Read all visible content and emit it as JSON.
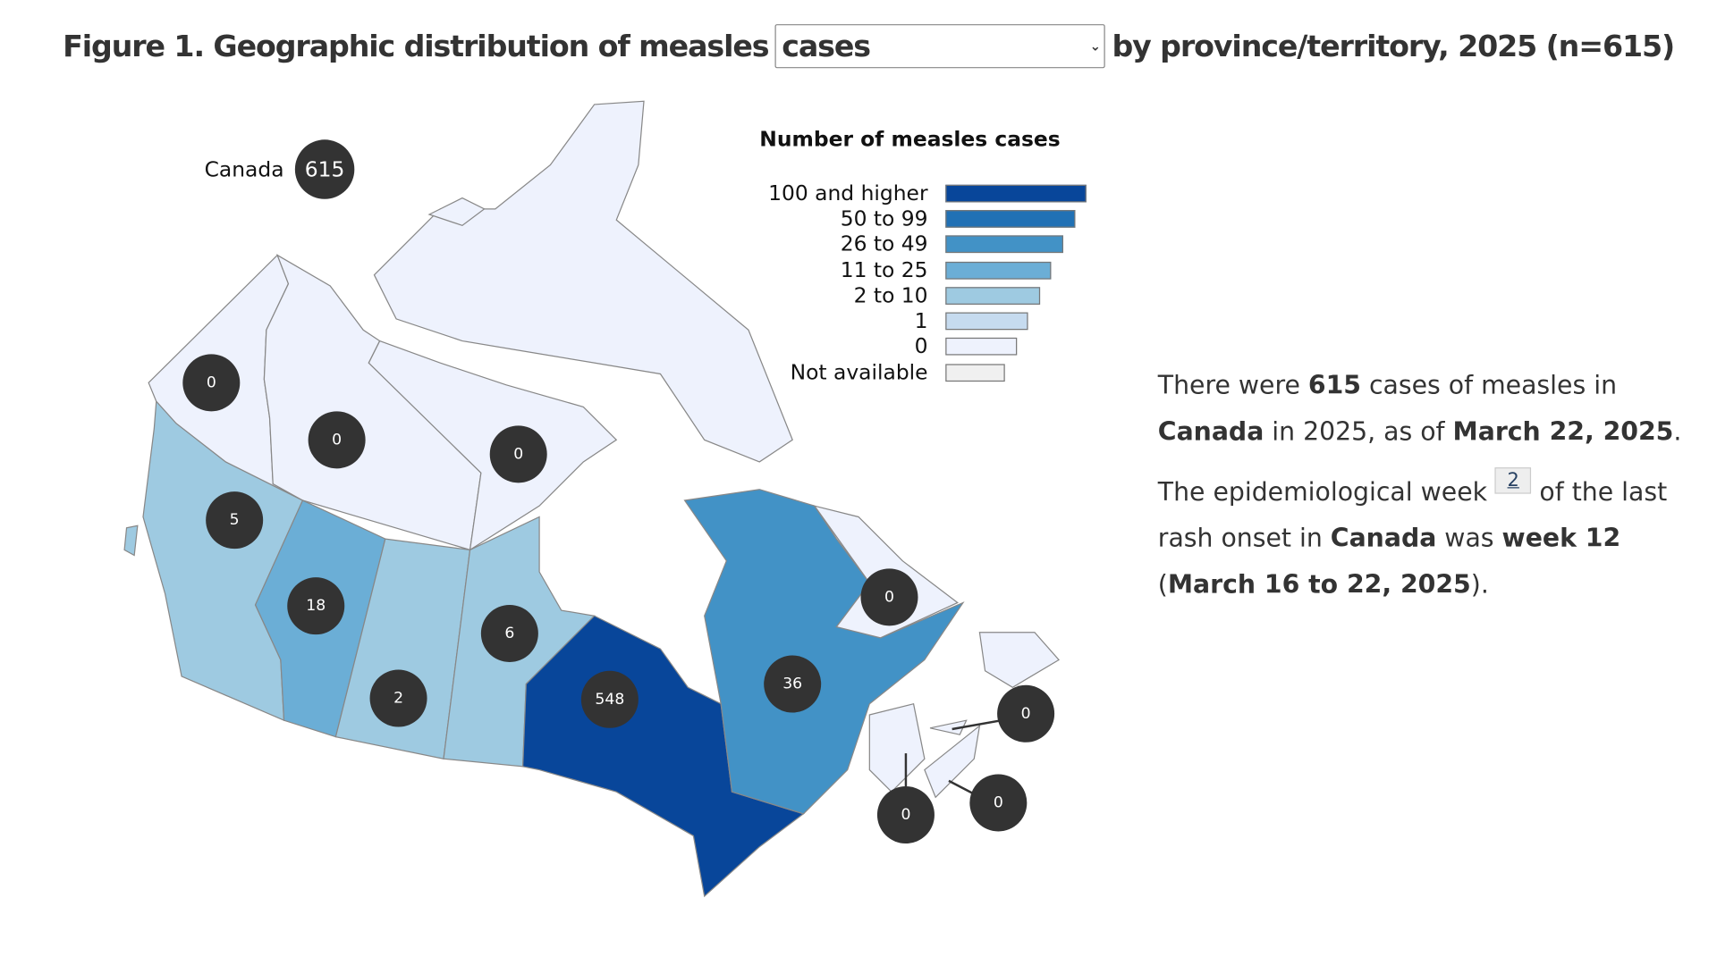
{
  "title": {
    "prefix": "Figure 1. Geographic distribution of measles",
    "select_value": "cases",
    "suffix": "by province/territory, 2025 (n=615)"
  },
  "canada": {
    "label": "Canada",
    "value": "615"
  },
  "legend": {
    "title": "Number of measles cases",
    "items": [
      {
        "label": "100 and higher",
        "color": "#08469a"
      },
      {
        "label": "50 to 99",
        "color": "#2171b5"
      },
      {
        "label": "26 to 49",
        "color": "#4292c6"
      },
      {
        "label": "11 to 25",
        "color": "#6baed6"
      },
      {
        "label": "2 to 10",
        "color": "#9ecae1"
      },
      {
        "label": "1",
        "color": "#c6dbef"
      },
      {
        "label": "0",
        "color": "#eef2fd"
      },
      {
        "label": "Not available",
        "color": "#f0f0f0"
      }
    ]
  },
  "regions": [
    {
      "id": "YT",
      "value": 0
    },
    {
      "id": "NT",
      "value": 0
    },
    {
      "id": "NU",
      "value": 0
    },
    {
      "id": "BC",
      "value": 5
    },
    {
      "id": "AB",
      "value": 18
    },
    {
      "id": "SK",
      "value": 2
    },
    {
      "id": "MB",
      "value": 6
    },
    {
      "id": "ON",
      "value": 548
    },
    {
      "id": "QC",
      "value": 36
    },
    {
      "id": "NL",
      "value": 0
    },
    {
      "id": "PE",
      "value": 0
    },
    {
      "id": "NB",
      "value": 0
    },
    {
      "id": "NS",
      "value": 0
    }
  ],
  "summary": {
    "p1": [
      "There were ",
      "615",
      " cases of measles in ",
      "Canada",
      " in 2025, as of ",
      "March 22, 2025",
      "."
    ],
    "p2": [
      "The epidemiological week ",
      "2",
      " of the last rash onset in ",
      "Canada",
      " was ",
      "week 12",
      " (",
      "March 16 to 22, 2025",
      "",
      ")."
    ]
  }
}
